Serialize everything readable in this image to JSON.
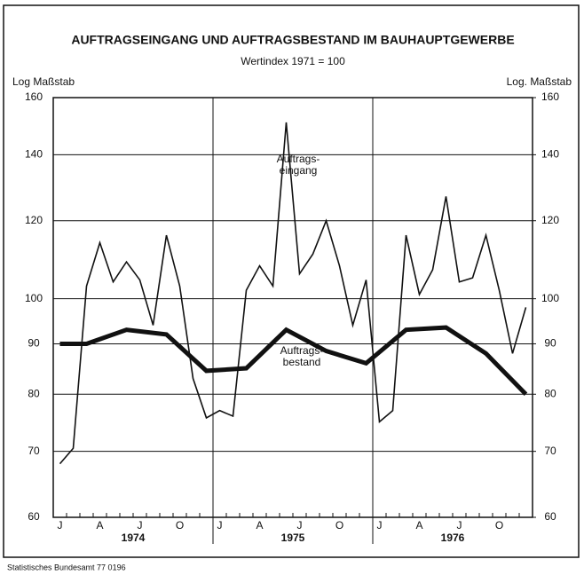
{
  "chart_data": {
    "type": "line",
    "title": "AUFTRAGSEINGANG UND AUFTRAGSBESTAND IM BAUHAUPTGEWERBE",
    "subtitle": "Wertindex 1971 = 100",
    "y_label_left": "Log Maßstab",
    "y_label_right": "Log. Maßstab",
    "source": "Statistisches Bundesamt 77 0196",
    "log_scale": true,
    "grid": true,
    "categories": [
      "J",
      null,
      null,
      "A",
      null,
      null,
      "J",
      null,
      null,
      "O",
      null,
      null,
      "J",
      null,
      null,
      "A",
      null,
      null,
      "J",
      null,
      null,
      "O",
      null,
      null,
      "J",
      null,
      null,
      "A",
      null,
      null,
      "J",
      null,
      null,
      "O",
      null,
      null
    ],
    "years": [
      "1974",
      "1975",
      "1976"
    ],
    "ylim": [
      60,
      160
    ],
    "yticks": [
      60,
      70,
      80,
      90,
      100,
      120,
      140,
      160
    ],
    "y2lim": [
      60,
      160
    ],
    "y2ticks": [
      60,
      70,
      80,
      90,
      100,
      120,
      140,
      160
    ],
    "series": [
      {
        "name": "Auftrags-\neingang",
        "color": "#111111",
        "values": [
          68,
          70.5,
          103,
          114,
          104,
          109,
          104.5,
          94,
          116,
          103,
          83,
          75.7,
          77,
          76,
          102,
          108,
          103,
          151,
          106,
          111,
          120,
          108,
          94,
          104.5,
          75,
          77,
          116,
          101,
          107,
          127,
          104,
          105,
          116,
          102,
          88,
          98
        ]
      },
      {
        "name": "Auftrags-\nbestand",
        "color": "#111111",
        "x": [
          0,
          2,
          5,
          8,
          11,
          14,
          17,
          20,
          23,
          26,
          29,
          32,
          35
        ],
        "values": [
          90,
          90,
          93,
          92,
          84.5,
          85,
          93,
          88.5,
          86,
          93,
          93.5,
          88,
          80
        ]
      }
    ]
  }
}
